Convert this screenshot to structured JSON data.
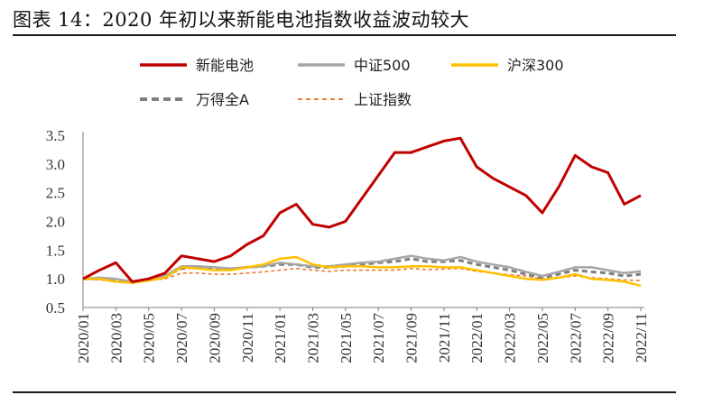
{
  "title": "图表 14：2020 年初以来新能电池指数收益波动较大",
  "chart_data": {
    "type": "line",
    "title": "图表 14：2020 年初以来新能电池指数收益波动较大",
    "xlabel": "",
    "ylabel": "",
    "ylim": [
      0.5,
      3.5
    ],
    "yticks": [
      "0.5",
      "1.0",
      "1.5",
      "2.0",
      "2.5",
      "3.0",
      "3.5"
    ],
    "grid": false,
    "legend_position": "top",
    "x_tick_labels": [
      "2020/01",
      "2020/03",
      "2020/05",
      "2020/07",
      "2020/09",
      "2020/11",
      "2021/01",
      "2021/03",
      "2021/05",
      "2021/07",
      "2021/09",
      "2021/11",
      "2022/01",
      "2022/03",
      "2022/05",
      "2022/07",
      "2022/09",
      "2022/11"
    ],
    "x": [
      "2020/01",
      "2020/02",
      "2020/03",
      "2020/04",
      "2020/05",
      "2020/06",
      "2020/07",
      "2020/08",
      "2020/09",
      "2020/10",
      "2020/11",
      "2020/12",
      "2021/01",
      "2021/02",
      "2021/03",
      "2021/04",
      "2021/05",
      "2021/06",
      "2021/07",
      "2021/08",
      "2021/09",
      "2021/10",
      "2021/11",
      "2021/12",
      "2022/01",
      "2022/02",
      "2022/03",
      "2022/04",
      "2022/05",
      "2022/06",
      "2022/07",
      "2022/08",
      "2022/09",
      "2022/10",
      "2022/11"
    ],
    "series": [
      {
        "name": "新能电池",
        "color": "#c00000",
        "style": "solid",
        "values": [
          1.0,
          1.15,
          1.28,
          0.95,
          1.0,
          1.1,
          1.4,
          1.35,
          1.3,
          1.4,
          1.6,
          1.75,
          2.15,
          2.3,
          1.95,
          1.9,
          2.0,
          2.4,
          2.8,
          3.2,
          3.2,
          3.3,
          3.4,
          3.45,
          2.95,
          2.75,
          2.6,
          2.45,
          2.15,
          2.6,
          3.15,
          2.95,
          2.85,
          2.3,
          2.45
        ]
      },
      {
        "name": "中证500",
        "color": "#a6a6a6",
        "style": "solid",
        "values": [
          1.0,
          1.02,
          1.0,
          0.95,
          0.98,
          1.05,
          1.22,
          1.22,
          1.2,
          1.18,
          1.2,
          1.22,
          1.28,
          1.25,
          1.22,
          1.22,
          1.25,
          1.28,
          1.3,
          1.35,
          1.4,
          1.35,
          1.32,
          1.38,
          1.3,
          1.25,
          1.2,
          1.12,
          1.05,
          1.12,
          1.2,
          1.2,
          1.15,
          1.1,
          1.13
        ]
      },
      {
        "name": "沪深300",
        "color": "#ffc000",
        "style": "solid",
        "values": [
          1.0,
          1.0,
          0.95,
          0.93,
          0.97,
          1.02,
          1.2,
          1.18,
          1.15,
          1.15,
          1.2,
          1.25,
          1.35,
          1.38,
          1.25,
          1.2,
          1.22,
          1.22,
          1.2,
          1.2,
          1.22,
          1.22,
          1.2,
          1.2,
          1.15,
          1.1,
          1.05,
          1.0,
          0.98,
          1.02,
          1.08,
          1.0,
          0.98,
          0.95,
          0.88
        ]
      },
      {
        "name": "万得全A",
        "color": "#7f7f7f",
        "style": "dashed-thick",
        "values": [
          1.0,
          1.0,
          0.97,
          0.95,
          0.98,
          1.05,
          1.18,
          1.2,
          1.17,
          1.17,
          1.2,
          1.22,
          1.25,
          1.25,
          1.2,
          1.2,
          1.22,
          1.25,
          1.28,
          1.3,
          1.35,
          1.3,
          1.3,
          1.32,
          1.25,
          1.2,
          1.15,
          1.08,
          1.02,
          1.08,
          1.15,
          1.12,
          1.1,
          1.05,
          1.08
        ]
      },
      {
        "name": "上证指数",
        "color": "#ed7d31",
        "style": "dashed-thin",
        "values": [
          1.0,
          0.98,
          0.95,
          0.94,
          0.97,
          1.0,
          1.1,
          1.1,
          1.08,
          1.08,
          1.1,
          1.12,
          1.15,
          1.18,
          1.15,
          1.13,
          1.15,
          1.15,
          1.15,
          1.15,
          1.18,
          1.16,
          1.17,
          1.18,
          1.13,
          1.1,
          1.07,
          1.05,
          1.0,
          1.02,
          1.05,
          1.02,
          1.0,
          0.98,
          0.97
        ]
      }
    ]
  }
}
